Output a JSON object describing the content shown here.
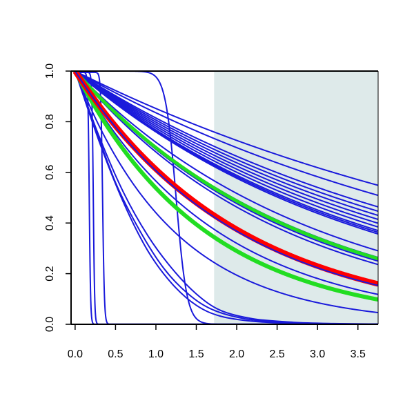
{
  "chart_data": {
    "type": "line",
    "title": "",
    "xlabel": "",
    "ylabel": "",
    "xlim": [
      -0.05,
      3.75
    ],
    "ylim": [
      0.0,
      1.0
    ],
    "grid": false,
    "legend": "none",
    "x_ticks": [
      "0.0",
      "0.5",
      "1.0",
      "1.5",
      "2.0",
      "2.5",
      "3.0",
      "3.5"
    ],
    "x_tick_values": [
      0.0,
      0.5,
      1.0,
      1.5,
      2.0,
      2.5,
      3.0,
      3.5
    ],
    "y_ticks": [
      "0.0",
      "0.2",
      "0.4",
      "0.6",
      "0.8",
      "1.0"
    ],
    "y_tick_values": [
      0.0,
      0.2,
      0.4,
      0.6,
      0.8,
      1.0
    ],
    "shaded_region": {
      "x_from": 1.72,
      "x_to": 3.75,
      "color": "#deeaea"
    },
    "colors": {
      "blue": "#1a1adb",
      "red": "#ff0000",
      "green": "#22dd22"
    },
    "series": [
      {
        "kind": "exp",
        "rate": 0.16,
        "color": "blue",
        "width": 2
      },
      {
        "kind": "exp",
        "rate": 0.18,
        "color": "blue",
        "width": 2
      },
      {
        "kind": "exp",
        "rate": 0.205,
        "color": "blue",
        "width": 2
      },
      {
        "kind": "exp",
        "rate": 0.215,
        "color": "blue",
        "width": 2
      },
      {
        "kind": "exp",
        "rate": 0.225,
        "color": "blue",
        "width": 2
      },
      {
        "kind": "exp",
        "rate": 0.235,
        "color": "blue",
        "width": 2
      },
      {
        "kind": "exp",
        "rate": 0.245,
        "color": "blue",
        "width": 2
      },
      {
        "kind": "exp",
        "rate": 0.255,
        "color": "blue",
        "width": 2
      },
      {
        "kind": "exp",
        "rate": 0.265,
        "color": "blue",
        "width": 2
      },
      {
        "kind": "exp",
        "rate": 0.27,
        "color": "blue",
        "width": 2
      },
      {
        "kind": "exp",
        "rate": 0.275,
        "color": "blue",
        "width": 2
      },
      {
        "kind": "exp",
        "rate": 0.33,
        "color": "blue",
        "width": 2
      },
      {
        "kind": "exp",
        "rate": 0.355,
        "color": "blue",
        "width": 2
      },
      {
        "kind": "exp",
        "rate": 0.37,
        "color": "blue",
        "width": 2
      },
      {
        "kind": "exp",
        "rate": 0.385,
        "color": "blue",
        "width": 2
      },
      {
        "kind": "exp",
        "rate": 0.57,
        "color": "blue",
        "width": 2
      },
      {
        "kind": "exp",
        "rate": 0.82,
        "color": "blue",
        "width": 2
      },
      {
        "kind": "poly",
        "points": [
          [
            0,
            1
          ],
          [
            0.3,
            0.74
          ],
          [
            0.6,
            0.52
          ],
          [
            0.9,
            0.35
          ],
          [
            1.2,
            0.22
          ],
          [
            1.5,
            0.12
          ],
          [
            1.8,
            0.055
          ],
          [
            2.2,
            0.022
          ],
          [
            2.7,
            0.008
          ],
          [
            3.2,
            0.003
          ],
          [
            3.75,
            0.001
          ]
        ],
        "color": "blue",
        "width": 2
      },
      {
        "kind": "poly",
        "points": [
          [
            0,
            1
          ],
          [
            0.3,
            0.72
          ],
          [
            0.6,
            0.48
          ],
          [
            0.9,
            0.29
          ],
          [
            1.2,
            0.16
          ],
          [
            1.5,
            0.075
          ],
          [
            1.8,
            0.032
          ],
          [
            2.2,
            0.012
          ],
          [
            2.7,
            0.004
          ],
          [
            3.75,
            0.001
          ]
        ],
        "color": "blue",
        "width": 2
      },
      {
        "kind": "poly",
        "points": [
          [
            0,
            1
          ],
          [
            0.2,
            0.82
          ],
          [
            0.5,
            0.56
          ],
          [
            0.8,
            0.37
          ],
          [
            1.1,
            0.22
          ],
          [
            1.4,
            0.12
          ],
          [
            1.7,
            0.058
          ],
          [
            2.1,
            0.022
          ],
          [
            2.6,
            0.007
          ],
          [
            3.2,
            0.002
          ],
          [
            3.75,
            0.001
          ]
        ],
        "color": "blue",
        "width": 2
      },
      {
        "kind": "logistic",
        "mid": 0.175,
        "k": 120,
        "top": 0.995,
        "color": "blue",
        "width": 2
      },
      {
        "kind": "logistic",
        "mid": 0.225,
        "k": 120,
        "top": 0.995,
        "color": "blue",
        "width": 2
      },
      {
        "kind": "logistic",
        "mid": 0.34,
        "k": 90,
        "top": 0.995,
        "color": "blue",
        "width": 2
      },
      {
        "kind": "logistic",
        "mid": 1.25,
        "k": 15,
        "top": 1.0,
        "color": "blue",
        "width": 2
      },
      {
        "kind": "exp",
        "rate": 0.36,
        "color": "green",
        "width": 5
      },
      {
        "kind": "exp",
        "rate": 0.62,
        "color": "green",
        "width": 6
      },
      {
        "kind": "exp",
        "rate": 0.49,
        "color": "red",
        "width": 8
      },
      {
        "kind": "exp",
        "rate": 0.5,
        "color": "blue",
        "width": 2
      }
    ]
  }
}
